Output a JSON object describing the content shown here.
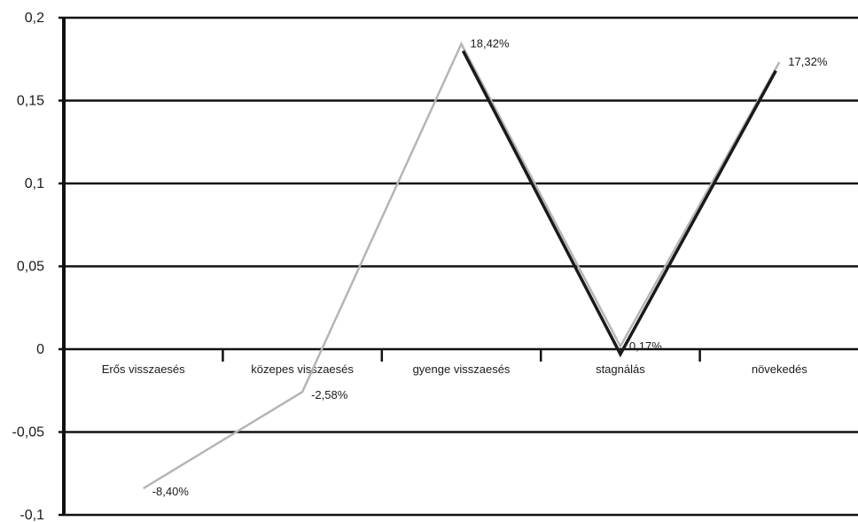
{
  "chart_data": {
    "type": "line",
    "categories": [
      "Erős visszaesés",
      "közepes visszaesés",
      "gyenge visszaesés",
      "stagnálás",
      "növekedés"
    ],
    "ylim": [
      -0.1,
      0.2
    ],
    "yticks": [
      "0,2",
      "0,15",
      "0,1",
      "0,05",
      "0",
      "-0,05",
      "-0,1"
    ],
    "ytick_values": [
      0.2,
      0.15,
      0.1,
      0.05,
      0,
      -0.05,
      -0.1
    ],
    "grid": true,
    "series": [
      {
        "color": "#b5b5b5",
        "values": [
          -0.084,
          -0.0258,
          0.1842,
          0.0017,
          0.1732
        ],
        "labels": [
          "-8,40%",
          "-2,58%",
          "18,42%",
          "0,17%",
          "17,32%"
        ]
      },
      {
        "color": "#1a1a1a",
        "values": [
          null,
          null,
          0.18,
          -0.003,
          0.168
        ]
      }
    ]
  }
}
